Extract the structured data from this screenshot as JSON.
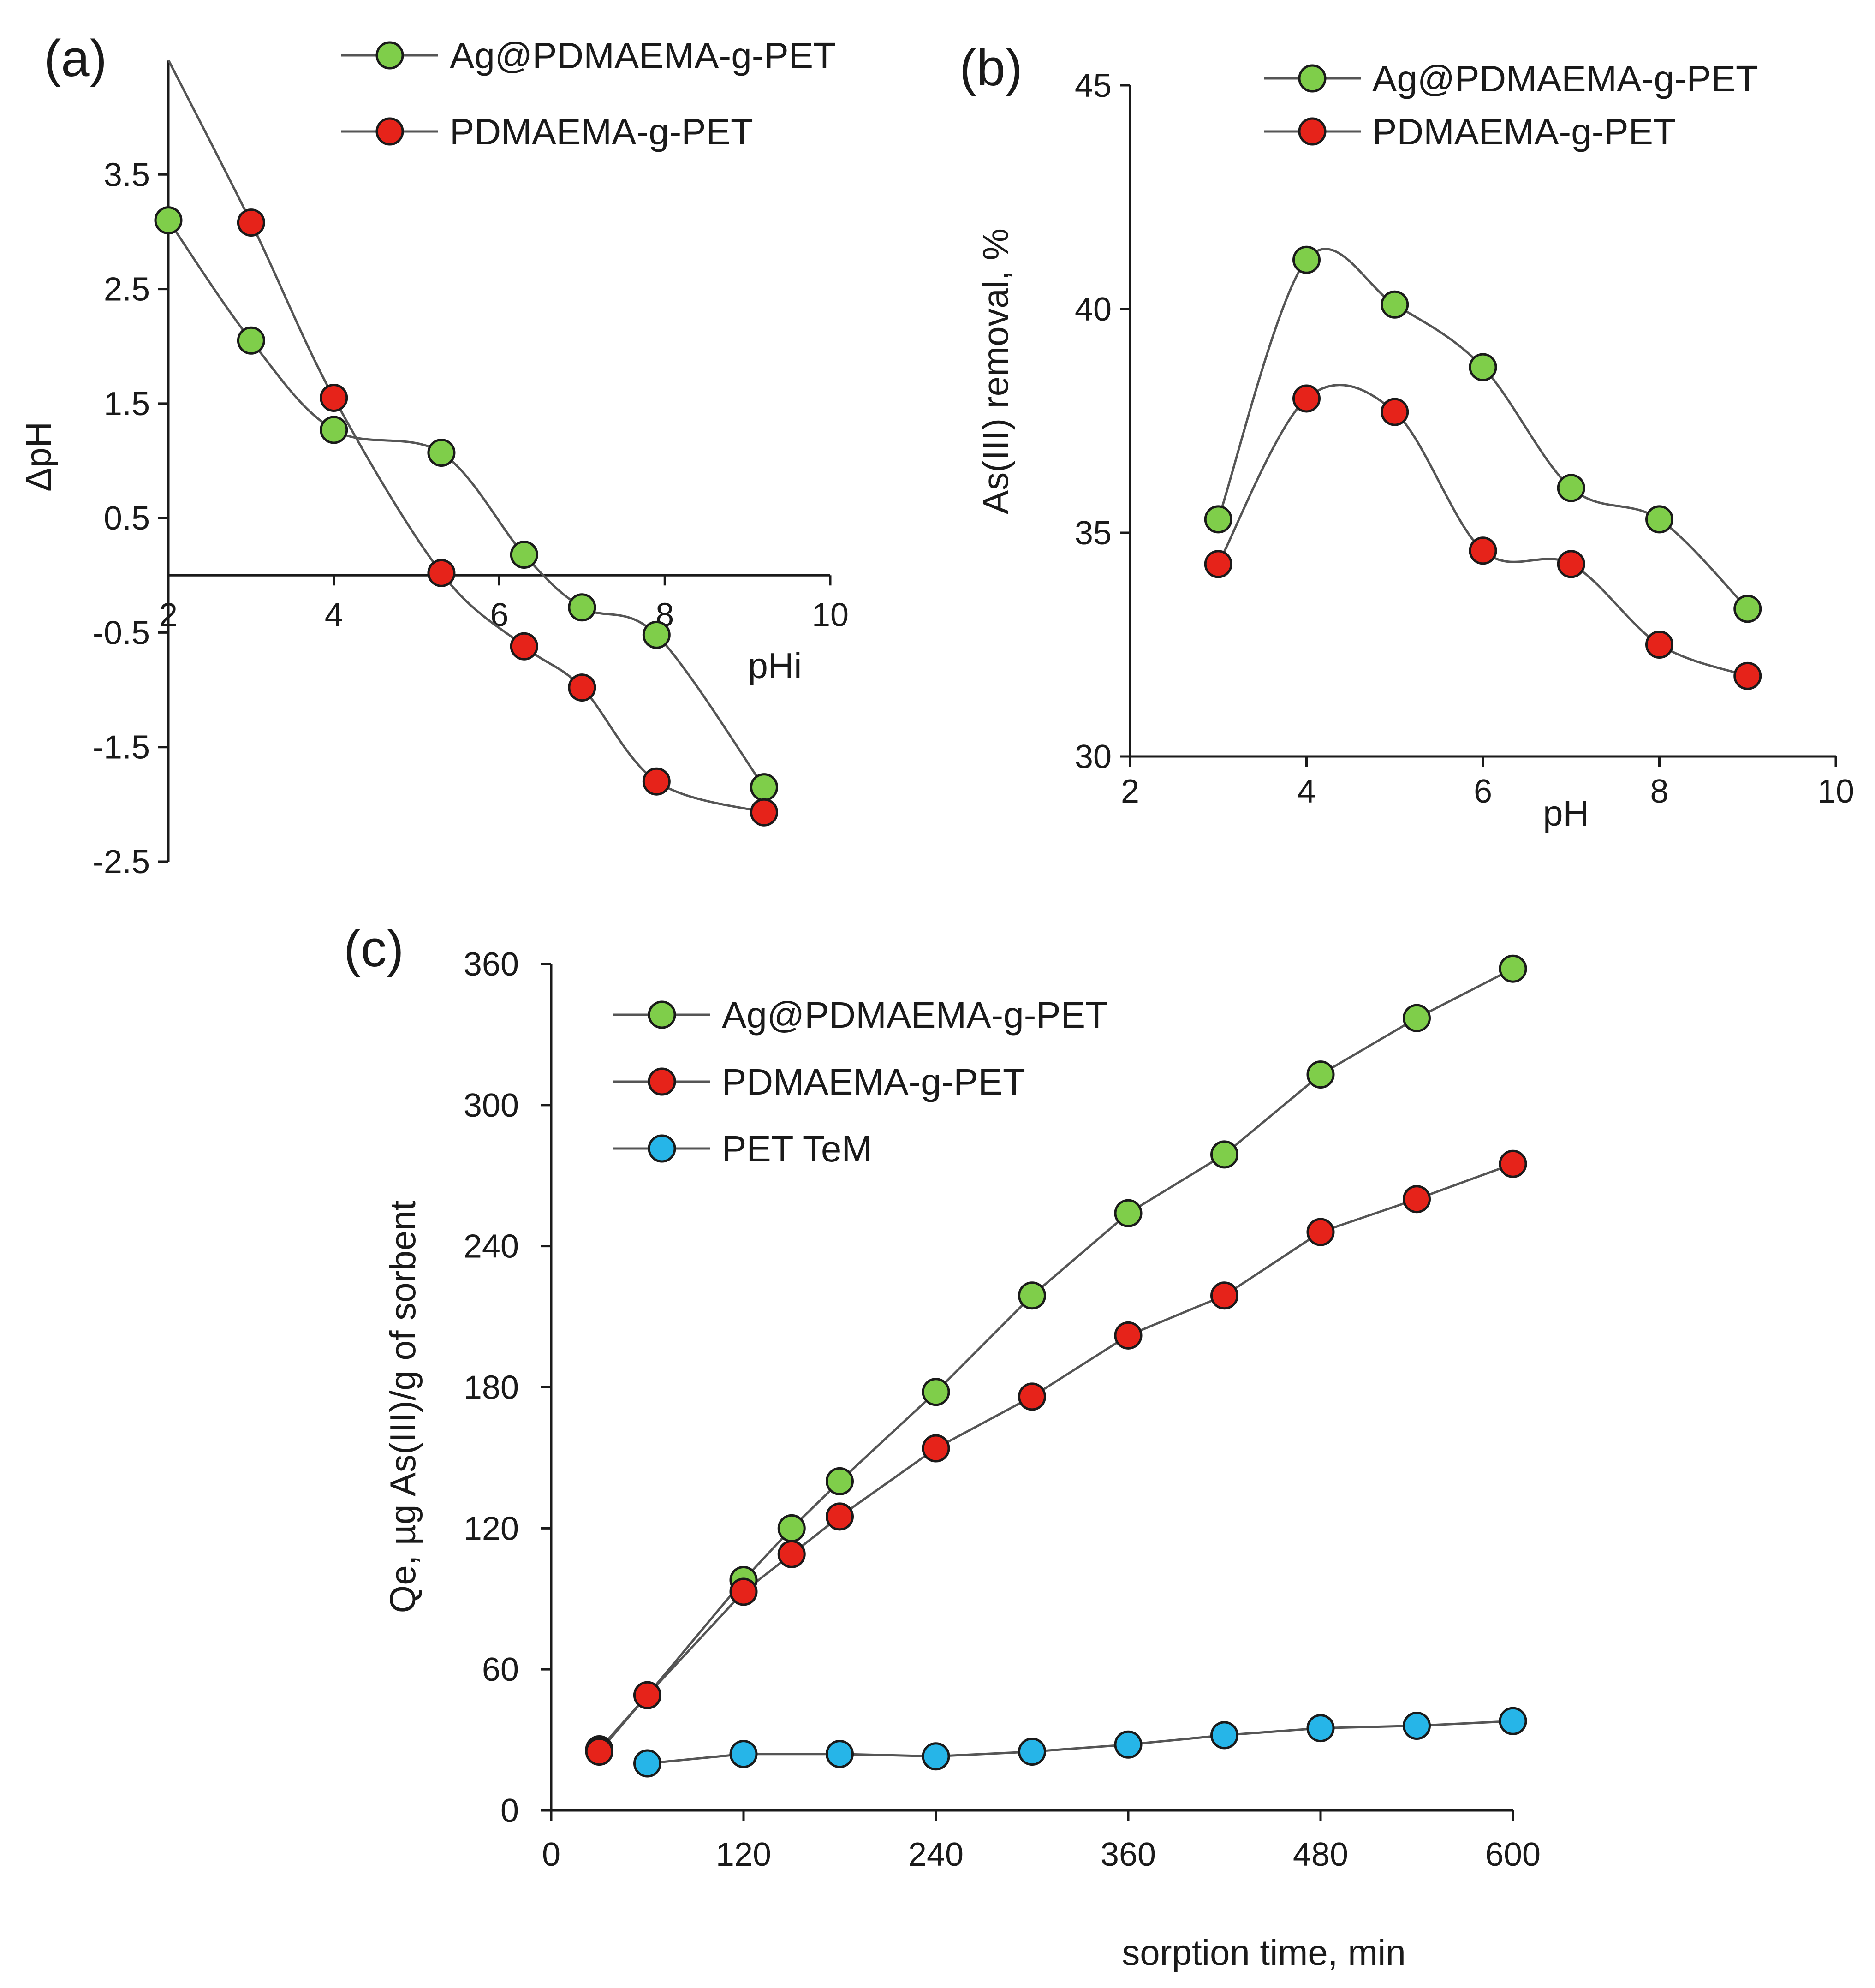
{
  "colors": {
    "green": "#7fce4a",
    "red": "#e6231a",
    "blue": "#26b5e8",
    "line": "#555555"
  },
  "chart_data": [
    {
      "panel": "(a)",
      "type": "line",
      "title": "",
      "xlabel": "pHi",
      "ylabel": "ΔpH",
      "xlim": [
        2,
        10
      ],
      "ylim": [
        -2.5,
        4.5
      ],
      "x_ticks": [
        2,
        4,
        6,
        8,
        10
      ],
      "y_ticks": [
        3.5,
        2.5,
        1.5,
        0.5,
        -0.5,
        -1.5,
        -2.5
      ],
      "x_tick_labels": [
        "2",
        "4",
        "6",
        "8",
        "10"
      ],
      "y_tick_labels": [
        "3.5",
        "2.5",
        "1.5",
        "0.5",
        "-0.5",
        "-1.5",
        "-2.5"
      ],
      "legend": [
        "Ag@PDMAEMA-g-PET",
        "PDMAEMA-g-PET"
      ],
      "legend_position": "top-right",
      "series": [
        {
          "name": "Ag@PDMAEMA-g-PET",
          "color": "green",
          "x": [
            2,
            3,
            4,
            5.3,
            6.3,
            7,
            7.9,
            9.2
          ],
          "y": [
            3.1,
            2.05,
            1.27,
            1.07,
            0.18,
            -0.28,
            -0.52,
            -1.85
          ]
        },
        {
          "name": "PDMAEMA-g-PET",
          "color": "red",
          "x": [
            3,
            4,
            5.3,
            6.3,
            7,
            7.9,
            9.2
          ],
          "y": [
            3.08,
            1.55,
            0.02,
            -0.62,
            -0.98,
            -1.8,
            -2.07
          ]
        }
      ]
    },
    {
      "panel": "(b)",
      "type": "line",
      "title": "",
      "xlabel": "pH",
      "ylabel": "As(III) removal, %",
      "xlim": [
        2,
        10
      ],
      "ylim": [
        30,
        45
      ],
      "x_ticks": [
        2,
        4,
        6,
        8,
        10
      ],
      "y_ticks": [
        30,
        35,
        40,
        45
      ],
      "x_tick_labels": [
        "2",
        "4",
        "6",
        "8",
        "10"
      ],
      "y_tick_labels": [
        "30",
        "35",
        "40",
        "45"
      ],
      "legend": [
        "Ag@PDMAEMA-g-PET",
        "PDMAEMA-g-PET"
      ],
      "legend_position": "top-right",
      "series": [
        {
          "name": "Ag@PDMAEMA-g-PET",
          "color": "green",
          "x": [
            3,
            4,
            5,
            6,
            7,
            8,
            9
          ],
          "y": [
            35.3,
            41.1,
            40.1,
            38.7,
            36.0,
            35.3,
            33.3
          ]
        },
        {
          "name": "PDMAEMA-g-PET",
          "color": "red",
          "x": [
            3,
            4,
            5,
            6,
            7,
            8,
            9
          ],
          "y": [
            34.3,
            38.0,
            37.7,
            34.6,
            34.3,
            32.5,
            31.8
          ]
        }
      ]
    },
    {
      "panel": "(c)",
      "type": "line",
      "title": "",
      "xlabel": "sorption time, min",
      "ylabel": "Qe, µg As(III)/g of sorbent",
      "xlim": [
        0,
        600
      ],
      "ylim": [
        0,
        360
      ],
      "x_ticks": [
        0,
        120,
        240,
        360,
        480,
        600
      ],
      "y_ticks": [
        0,
        60,
        120,
        180,
        240,
        300,
        360
      ],
      "x_tick_labels": [
        "0",
        "120",
        "240",
        "360",
        "480",
        "600"
      ],
      "y_tick_labels": [
        "0",
        "60",
        "120",
        "180",
        "240",
        "300",
        "360"
      ],
      "legend": [
        "Ag@PDMAEMA-g-PET",
        "PDMAEMA-g-PET",
        "PET TeM"
      ],
      "legend_position": "top-left",
      "series": [
        {
          "name": "Ag@PDMAEMA-g-PET",
          "color": "green",
          "x": [
            30,
            60,
            120,
            150,
            180,
            240,
            300,
            360,
            420,
            480,
            540,
            600
          ],
          "y": [
            26,
            49,
            98,
            120,
            140,
            178,
            219,
            254,
            279,
            313,
            337,
            358
          ]
        },
        {
          "name": "PDMAEMA-g-PET",
          "color": "red",
          "x": [
            30,
            60,
            120,
            150,
            180,
            240,
            300,
            360,
            420,
            480,
            540,
            600
          ],
          "y": [
            25,
            49,
            93,
            109,
            125,
            154,
            176,
            202,
            219,
            246,
            260,
            275
          ]
        },
        {
          "name": "PET TeM",
          "color": "blue",
          "x": [
            60,
            120,
            180,
            240,
            300,
            360,
            420,
            480,
            540,
            600
          ],
          "y": [
            20,
            24,
            24,
            23,
            25,
            28,
            32,
            35,
            36,
            38
          ]
        }
      ]
    }
  ]
}
